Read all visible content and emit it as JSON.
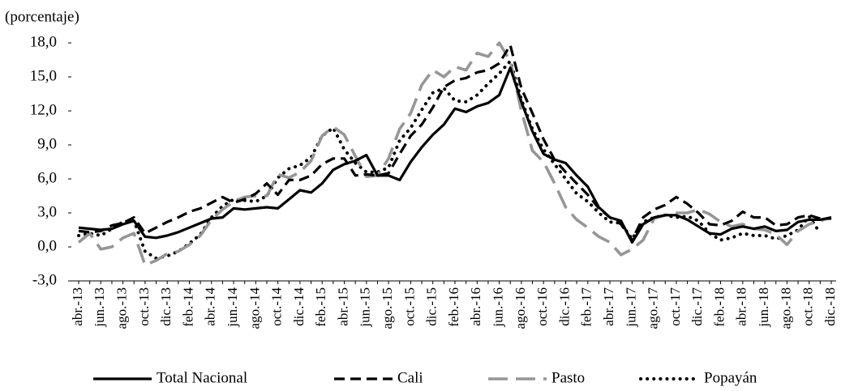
{
  "chart_data": {
    "type": "line",
    "y_label": "(porcentaje)",
    "categories": [
      "abr.-13",
      null,
      "jun.-13",
      null,
      "ago.-13",
      null,
      "oct.-13",
      null,
      "dic.-13",
      null,
      "feb.-14",
      null,
      "abr.-14",
      null,
      "jun.-14",
      null,
      "ago.-14",
      null,
      "oct.-14",
      null,
      "dic.-14",
      null,
      "feb.-15",
      null,
      "abr.-15",
      null,
      "jun.-15",
      null,
      "ago.-15",
      null,
      "oct.-15",
      null,
      "dic.-15",
      null,
      "feb.-16",
      null,
      "abr.-16",
      null,
      "jun.-16",
      null,
      "ago.-16",
      null,
      "oct.-16",
      null,
      "dic.-16",
      null,
      "feb.-17",
      null,
      "abr.-17",
      null,
      "jun.-17",
      null,
      "ago.-17",
      null,
      "oct.-17",
      null,
      "dic.-17",
      null,
      "feb.-18",
      null,
      "abr.-18",
      null,
      "jun.-18",
      null,
      "ago.-18",
      null,
      "oct.-18",
      null,
      "dic.-18"
    ],
    "series": [
      {
        "name": "Total Nacional",
        "color": "#000000",
        "values": [
          1.7,
          1.6,
          1.5,
          1.6,
          2.0,
          2.3,
          0.9,
          0.8,
          1.0,
          1.3,
          1.7,
          2.1,
          2.5,
          2.6,
          3.4,
          3.3,
          3.4,
          3.5,
          3.4,
          4.2,
          5.0,
          4.8,
          5.6,
          6.8,
          7.3,
          7.6,
          8.1,
          6.3,
          6.3,
          5.9,
          7.5,
          8.8,
          9.9,
          10.8,
          12.2,
          11.9,
          12.4,
          12.7,
          13.4,
          15.8,
          12.8,
          10.2,
          8.2,
          7.7,
          7.4,
          6.3,
          5.3,
          3.5,
          2.6,
          2.3,
          0.4,
          2.0,
          2.6,
          2.8,
          2.8,
          2.4,
          1.8,
          1.2,
          1.1,
          1.6,
          1.8,
          1.6,
          1.8,
          1.4,
          1.5,
          2.2,
          2.4,
          2.4,
          2.6
        ]
      },
      {
        "name": "Cali",
        "color": "#000000",
        "values": [
          1.4,
          1.3,
          1.4,
          1.9,
          2.1,
          2.6,
          1.2,
          1.7,
          2.2,
          2.6,
          3.1,
          3.4,
          3.9,
          4.4,
          3.9,
          4.2,
          4.7,
          5.6,
          4.6,
          5.9,
          5.9,
          6.3,
          7.3,
          7.8,
          7.8,
          6.3,
          6.4,
          6.3,
          6.5,
          8.2,
          9.8,
          10.8,
          12.3,
          14.1,
          14.7,
          14.9,
          15.4,
          15.6,
          16.2,
          17.8,
          14.0,
          11.8,
          9.5,
          7.7,
          6.6,
          5.6,
          4.6,
          3.4,
          2.6,
          2.0,
          0.6,
          2.6,
          3.3,
          3.7,
          4.4,
          3.8,
          3.0,
          2.0,
          1.9,
          2.3,
          3.1,
          2.6,
          2.6,
          1.9,
          2.0,
          2.6,
          2.8,
          2.5,
          2.5
        ]
      },
      {
        "name": "Pasto",
        "color": "#969696",
        "values": [
          0.4,
          1.2,
          -0.2,
          0.0,
          0.8,
          1.2,
          -1.6,
          -1.2,
          -0.6,
          -0.4,
          0.2,
          1.0,
          2.4,
          3.3,
          4.0,
          4.4,
          4.5,
          4.5,
          6.4,
          6.1,
          6.6,
          7.6,
          9.8,
          10.6,
          9.9,
          8.0,
          6.2,
          6.3,
          7.8,
          10.4,
          11.8,
          14.3,
          15.6,
          15.0,
          15.9,
          15.6,
          17.1,
          16.8,
          18.0,
          16.4,
          12.0,
          8.5,
          7.5,
          5.6,
          3.5,
          2.4,
          1.7,
          0.9,
          0.4,
          -0.7,
          -0.2,
          0.6,
          2.5,
          2.8,
          3.0,
          3.0,
          3.3,
          2.9,
          2.2,
          1.8,
          2.0,
          1.6,
          1.5,
          1.1,
          0.2,
          1.4,
          2.0,
          2.3,
          2.6
        ]
      },
      {
        "name": "Popayán",
        "color": "#000000",
        "values": [
          1.0,
          1.2,
          1.0,
          1.6,
          2.2,
          2.3,
          -0.4,
          -1.0,
          -0.8,
          -0.4,
          0.3,
          1.1,
          2.6,
          3.6,
          4.2,
          4.1,
          4.0,
          4.5,
          6.1,
          6.9,
          7.2,
          7.9,
          9.8,
          10.5,
          8.6,
          7.4,
          6.6,
          6.6,
          7.0,
          9.4,
          10.5,
          12.1,
          13.6,
          14.0,
          12.9,
          12.8,
          13.4,
          14.4,
          15.3,
          16.4,
          13.0,
          10.4,
          8.6,
          7.3,
          6.0,
          4.7,
          4.0,
          3.0,
          2.2,
          2.1,
          0.7,
          2.2,
          2.6,
          2.8,
          2.6,
          2.7,
          2.3,
          1.2,
          0.6,
          0.8,
          1.2,
          1.0,
          1.0,
          0.7,
          1.0,
          1.5,
          2.7,
          1.2,
          null
        ]
      }
    ],
    "ylim": [
      -3,
      18
    ],
    "yticks": [
      {
        "value": -3,
        "label": "-3,0"
      },
      {
        "value": 0,
        "label": "0,0"
      },
      {
        "value": 3,
        "label": "3,0"
      },
      {
        "value": 6,
        "label": "6,0"
      },
      {
        "value": 9,
        "label": "9,0"
      },
      {
        "value": 12,
        "label": "12,0"
      },
      {
        "value": 15,
        "label": "15,0"
      },
      {
        "value": 18,
        "label": "18,0"
      }
    ],
    "legend": "bottom"
  }
}
